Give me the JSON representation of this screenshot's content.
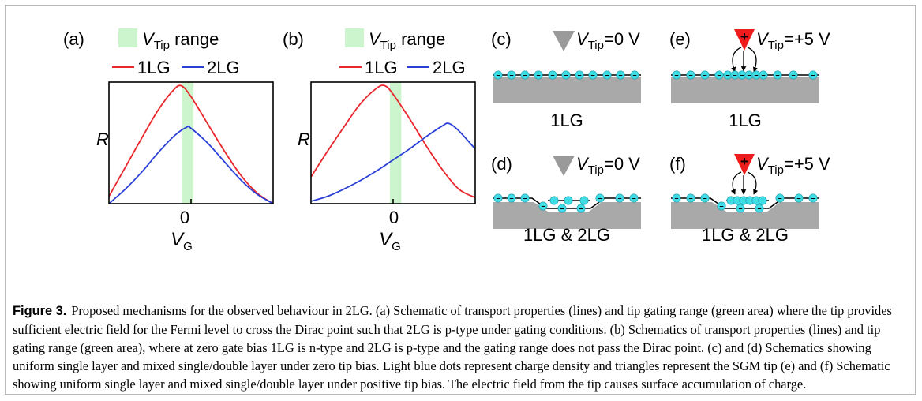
{
  "figure": {
    "panels": {
      "a": "(a)",
      "b": "(b)",
      "c": "(c)",
      "d": "(d)",
      "e": "(e)",
      "f": "(f)"
    },
    "legend": {
      "range_symbol": "V",
      "range_sub": "Tip",
      "range_text": " range",
      "series": [
        {
          "name": "1LG",
          "color": "#e8262b"
        },
        {
          "name": "2LG",
          "color": "#2a3fd6"
        }
      ]
    },
    "axes": {
      "y_label": "R",
      "x_tick": "0",
      "x_label_symbol": "V",
      "x_label_sub": "G"
    },
    "schematics": {
      "tip_symbol": "V",
      "tip_sub": "Tip",
      "tip_zero_value": "=0 V",
      "tip_pos_value": "=+5 V",
      "tip_plus": "+",
      "minus": "−",
      "label_1lg": "1LG",
      "label_mixed": "1LG & 2LG"
    },
    "colors": {
      "green_range": "#cdf5cd",
      "substrate": "#a9a9a9",
      "charge_dot": "#3fdce6",
      "tip_neutral": "#9a9a9a",
      "tip_positive": "#ee1c1c"
    }
  },
  "chart_data": [
    {
      "panel": "(a)",
      "type": "line",
      "title": "",
      "xlabel": "VG",
      "ylabel": "R",
      "x_ticks": [
        "0"
      ],
      "xlim": [
        -1,
        1
      ],
      "ylim": [
        0,
        1
      ],
      "shaded_range": {
        "label": "VTip range",
        "x": [
          -0.11,
          0.03
        ],
        "color": "#cdf5cd"
      },
      "series": [
        {
          "name": "1LG",
          "color": "#e8262b",
          "x": [
            -1,
            -0.8,
            -0.6,
            -0.4,
            -0.22,
            -0.12,
            0,
            0.2,
            0.4,
            0.6,
            0.8,
            1
          ],
          "y": [
            0.06,
            0.3,
            0.54,
            0.77,
            0.93,
            0.97,
            0.88,
            0.66,
            0.44,
            0.24,
            0.09,
            0.0
          ]
        },
        {
          "name": "2LG",
          "color": "#2a3fd6",
          "x": [
            -1,
            -0.8,
            -0.6,
            -0.4,
            -0.2,
            -0.05,
            0,
            0.2,
            0.4,
            0.6,
            0.8,
            1
          ],
          "y": [
            0.0,
            0.12,
            0.26,
            0.42,
            0.56,
            0.63,
            0.62,
            0.5,
            0.35,
            0.2,
            0.08,
            0.0
          ]
        }
      ]
    },
    {
      "panel": "(b)",
      "type": "line",
      "title": "",
      "xlabel": "VG",
      "ylabel": "R",
      "x_ticks": [
        "0"
      ],
      "xlim": [
        -1,
        1
      ],
      "ylim": [
        0,
        1
      ],
      "shaded_range": {
        "label": "VTip range",
        "x": [
          -0.04,
          0.1
        ],
        "color": "#cdf5cd"
      },
      "series": [
        {
          "name": "1LG",
          "color": "#e8262b",
          "x": [
            -1,
            -0.8,
            -0.6,
            -0.4,
            -0.2,
            -0.1,
            0,
            0.2,
            0.4,
            0.6,
            0.8,
            1
          ],
          "y": [
            0.22,
            0.43,
            0.63,
            0.82,
            0.95,
            0.97,
            0.9,
            0.7,
            0.48,
            0.28,
            0.12,
            0.05
          ]
        },
        {
          "name": "2LG",
          "color": "#2a3fd6",
          "x": [
            -1,
            -0.8,
            -0.6,
            -0.4,
            -0.2,
            0,
            0.2,
            0.4,
            0.6,
            0.68,
            0.8,
            1
          ],
          "y": [
            0.02,
            0.06,
            0.12,
            0.19,
            0.27,
            0.36,
            0.45,
            0.55,
            0.64,
            0.66,
            0.6,
            0.45
          ]
        }
      ]
    }
  ],
  "caption": {
    "label": "Figure 3.",
    "text": "Proposed mechanisms for the observed behaviour in 2LG. (a) Schematic of transport properties (lines) and tip gating range (green area) where the tip provides sufficient electric field for the Fermi level to cross the Dirac point such that 2LG is p-type under gating conditions. (b) Schematics of transport properties (lines) and tip gating range (green area), where at zero gate bias 1LG is n-type and 2LG is p-type and the gating range does not pass the Dirac point. (c) and (d) Schematics showing uniform single layer and mixed single/double layer under zero tip bias. Light blue dots represent charge density and triangles represent the SGM tip (e) and (f) Schematic showing uniform single layer and mixed single/double layer under positive tip bias. The electric field from the tip causes surface accumulation of charge."
  }
}
